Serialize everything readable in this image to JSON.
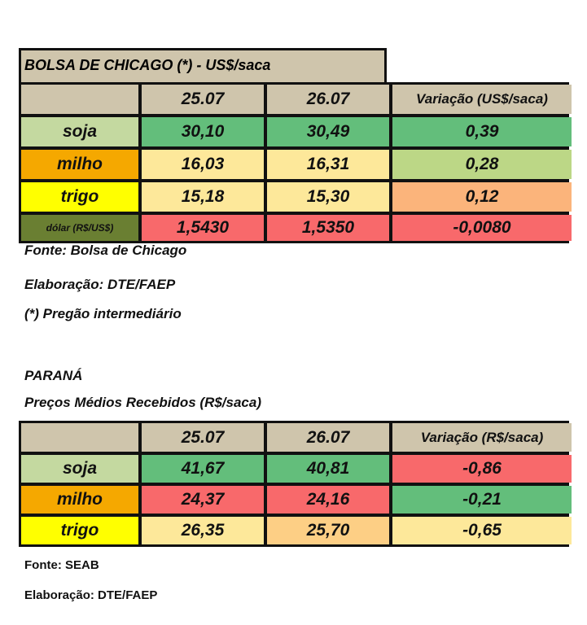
{
  "chicago": {
    "title": "BOLSA DE CHICAGO (*) - US$/saca",
    "headers": [
      "25.07",
      "26.07",
      "Variação (US$/saca)"
    ],
    "rows": [
      {
        "label": "soja",
        "v1": "30,10",
        "v2": "30,49",
        "var": "0,39",
        "colors": [
          "#c4d9a0",
          "#63be7b",
          "#63be7b",
          "#63be7b"
        ]
      },
      {
        "label": "milho",
        "v1": "16,03",
        "v2": "16,31",
        "var": "0,28",
        "colors": [
          "#f5a800",
          "#fde89a",
          "#fde89a",
          "#bcd786"
        ]
      },
      {
        "label": "trigo",
        "v1": "15,18",
        "v2": "15,30",
        "var": "0,12",
        "colors": [
          "#ffff00",
          "#fde89a",
          "#fde89a",
          "#fbb47b"
        ]
      },
      {
        "label": "dólar (R$/US$)",
        "v1": "1,5430",
        "v2": "1,5350",
        "var": "-0,0080",
        "colors": [
          "#6a7f32",
          "#f8696b",
          "#f8696b",
          "#f8696b"
        ]
      }
    ],
    "notes": [
      "Fonte: Bolsa de Chicago",
      "Elaboração: DTE/FAEP",
      "(*) Pregão intermediário"
    ]
  },
  "parana": {
    "title": "PARANÁ",
    "subtitle": "Preços Médios Recebidos  (R$/saca)",
    "headers": [
      "25.07",
      "26.07",
      "Variação (R$/saca)"
    ],
    "rows": [
      {
        "label": "soja",
        "v1": "41,67",
        "v2": "40,81",
        "var": "-0,86",
        "colors": [
          "#c4d9a0",
          "#63be7b",
          "#63be7b",
          "#f8696b"
        ]
      },
      {
        "label": "milho",
        "v1": "24,37",
        "v2": "24,16",
        "var": "-0,21",
        "colors": [
          "#f5a800",
          "#f8696b",
          "#f8696b",
          "#63be7b"
        ]
      },
      {
        "label": "trigo",
        "v1": "26,35",
        "v2": "25,70",
        "var": "-0,65",
        "colors": [
          "#ffff00",
          "#fde89a",
          "#fdcf85",
          "#fde89a"
        ]
      }
    ],
    "notes": [
      "Fonte: SEAB",
      "Elaboração: DTE/FAEP"
    ]
  }
}
